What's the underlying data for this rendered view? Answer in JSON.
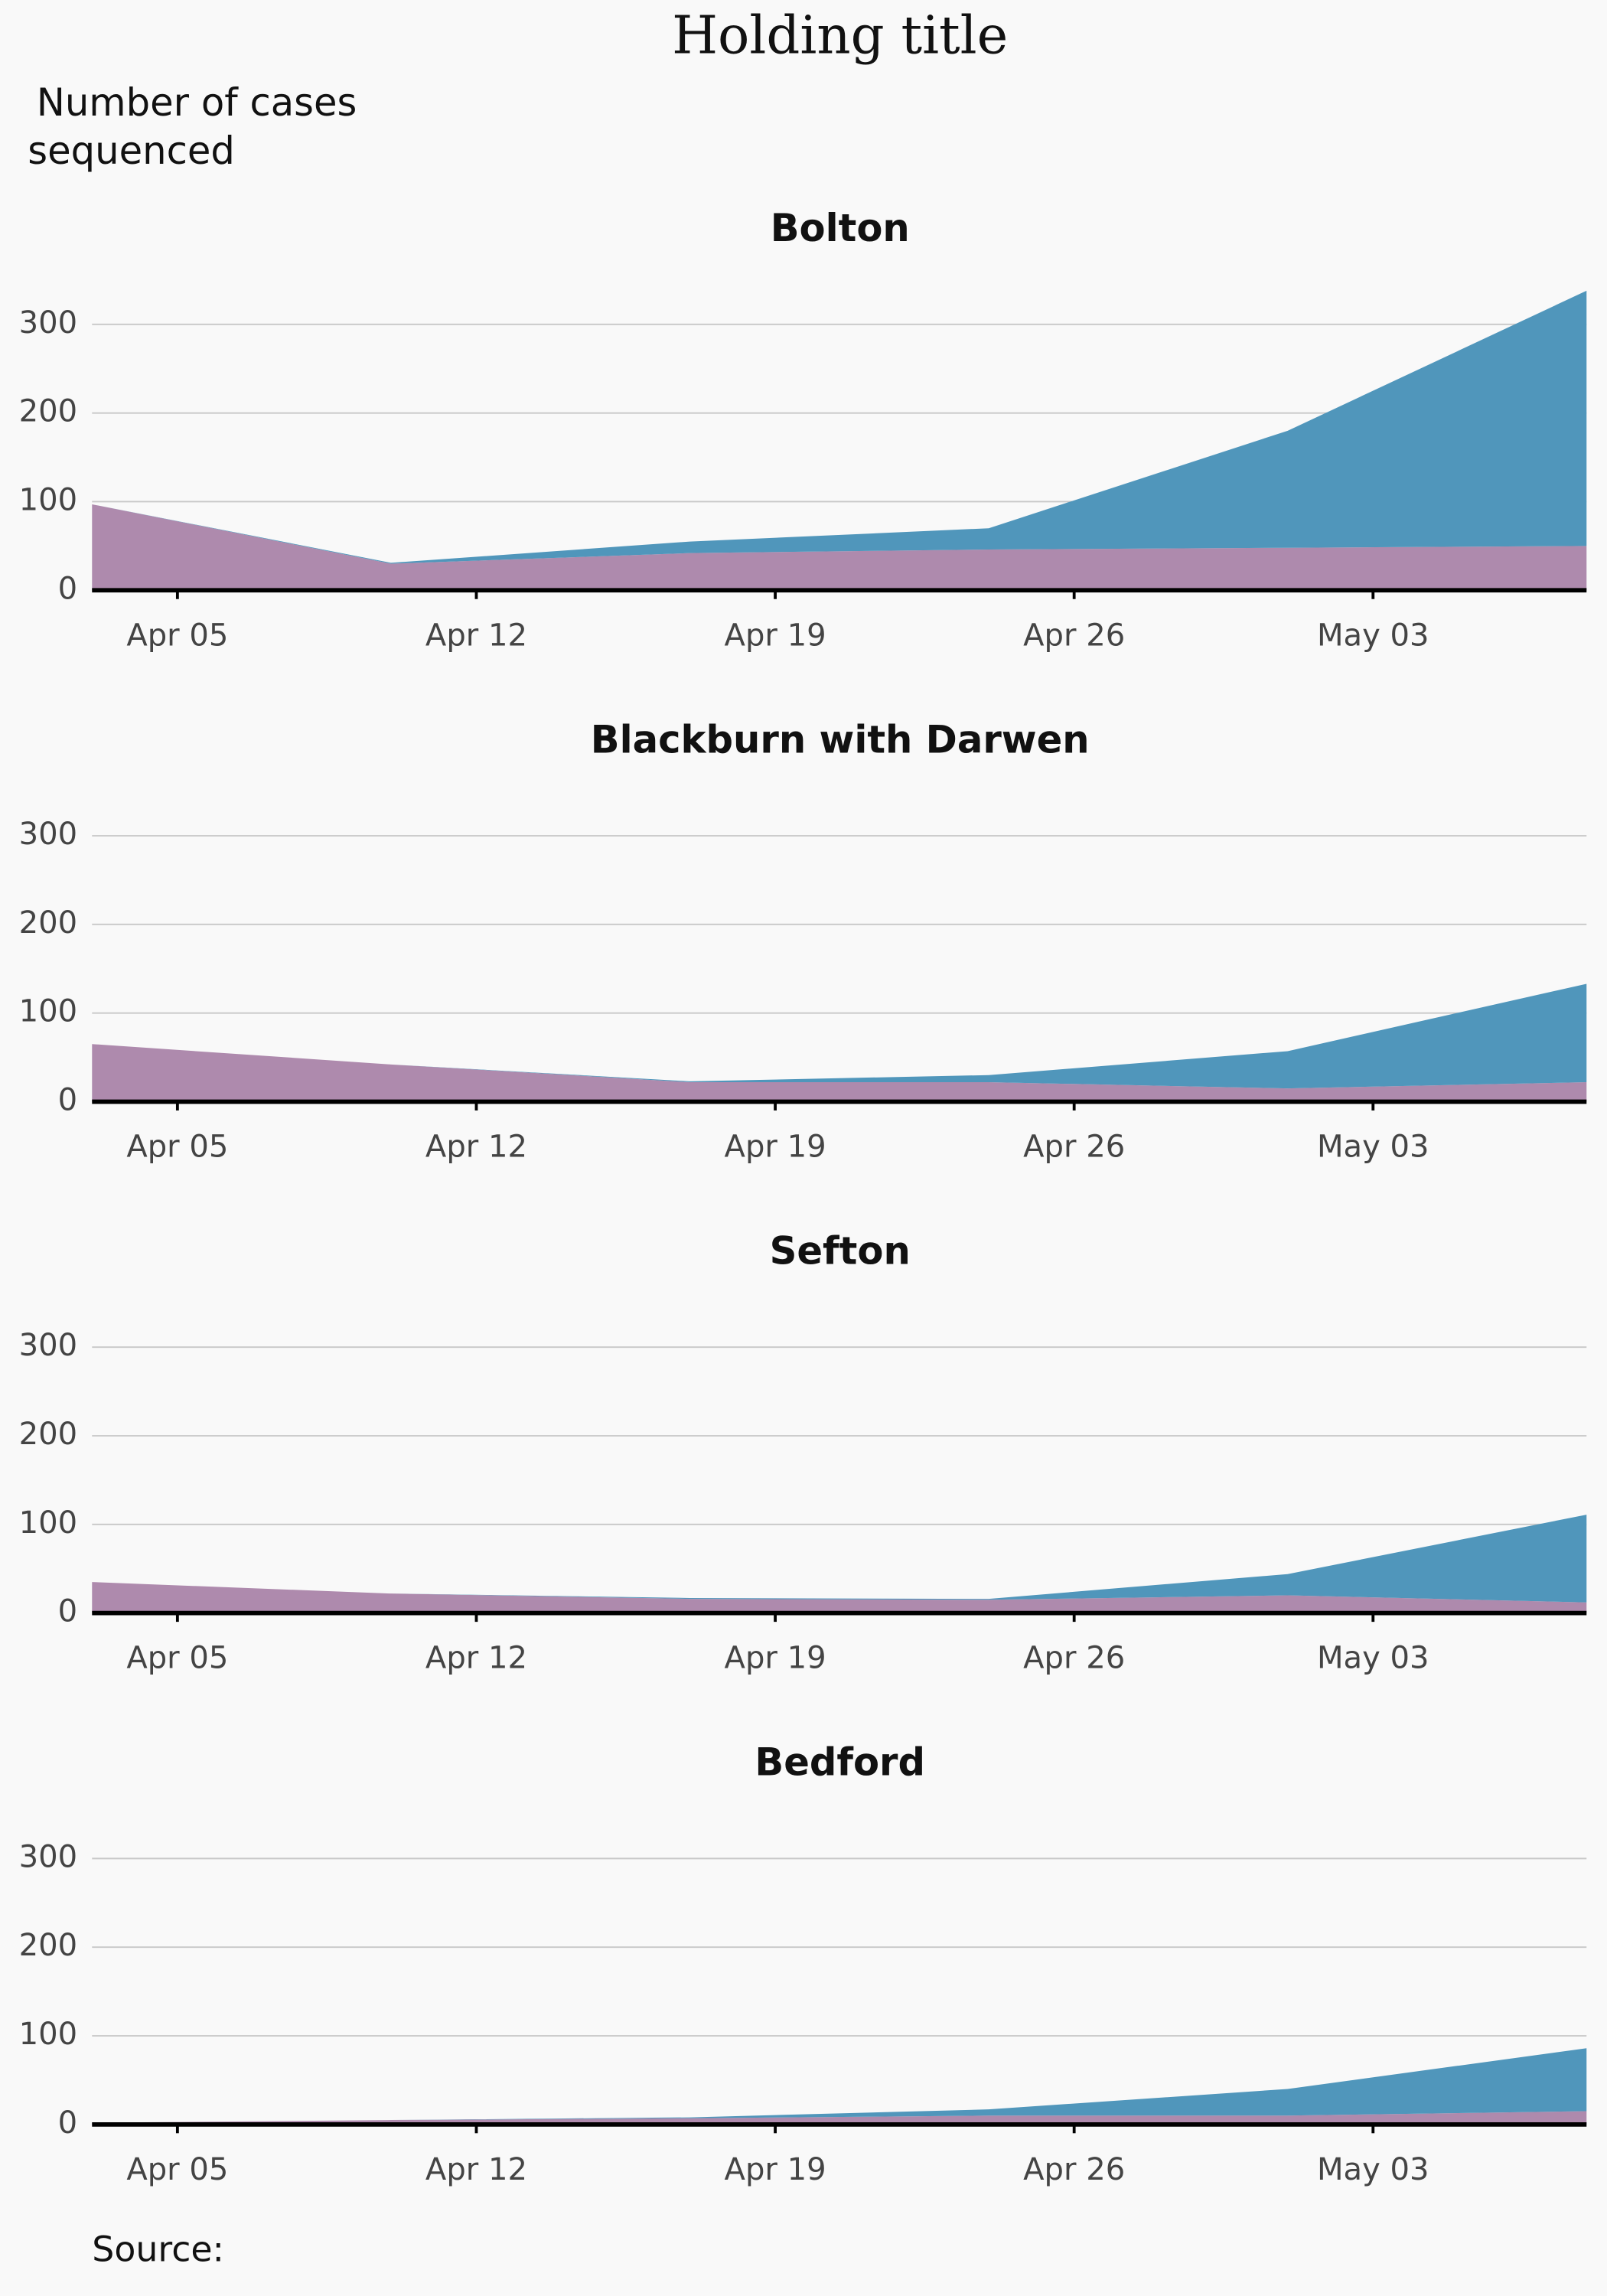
{
  "title": "Holding title",
  "y_label": [
    "Number of cases",
    "sequenced"
  ],
  "source": "Source:",
  "chart_data": [
    {
      "type": "area",
      "stacked": true,
      "title": "Bolton",
      "x": [
        "Apr 03",
        "Apr 10",
        "Apr 17",
        "Apr 24",
        "May 01",
        "May 08"
      ],
      "series": [
        {
          "color": "#ae8aad",
          "values": [
            97,
            30,
            42,
            46,
            48,
            50
          ]
        },
        {
          "color": "#5096bb",
          "values": [
            0,
            1,
            13,
            24,
            132,
            288
          ]
        }
      ],
      "xlim": [
        "Apr 03",
        "May 08"
      ],
      "xticks": [
        "Apr 05",
        "Apr 12",
        "Apr 19",
        "Apr 26",
        "May 03"
      ],
      "ylim": [
        0,
        340
      ],
      "yticks": [
        0,
        100,
        200,
        300
      ],
      "grid": true
    },
    {
      "type": "area",
      "stacked": true,
      "title": "Blackburn with Darwen",
      "x": [
        "Apr 03",
        "Apr 10",
        "Apr 17",
        "Apr 24",
        "May 01",
        "May 08"
      ],
      "series": [
        {
          "color": "#ae8aad",
          "values": [
            65,
            42,
            22,
            22,
            15,
            22
          ]
        },
        {
          "color": "#5096bb",
          "values": [
            0,
            0,
            1,
            8,
            42,
            111
          ]
        }
      ],
      "xlim": [
        "Apr 03",
        "May 08"
      ],
      "xticks": [
        "Apr 05",
        "Apr 12",
        "Apr 19",
        "Apr 26",
        "May 03"
      ],
      "ylim": [
        0,
        340
      ],
      "yticks": [
        0,
        100,
        200,
        300
      ],
      "grid": true
    },
    {
      "type": "area",
      "stacked": true,
      "title": "Sefton",
      "x": [
        "Apr 03",
        "Apr 10",
        "Apr 17",
        "Apr 24",
        "May 01",
        "May 08"
      ],
      "series": [
        {
          "color": "#ae8aad",
          "values": [
            35,
            22,
            16,
            15,
            20,
            12
          ]
        },
        {
          "color": "#5096bb",
          "values": [
            0,
            0,
            1,
            1,
            24,
            99
          ]
        }
      ],
      "xlim": [
        "Apr 03",
        "May 08"
      ],
      "xticks": [
        "Apr 05",
        "Apr 12",
        "Apr 19",
        "Apr 26",
        "May 03"
      ],
      "ylim": [
        0,
        340
      ],
      "yticks": [
        0,
        100,
        200,
        300
      ],
      "grid": true
    },
    {
      "type": "area",
      "stacked": true,
      "title": "Bedford",
      "x": [
        "Apr 03",
        "Apr 10",
        "Apr 17",
        "Apr 24",
        "May 01",
        "May 08"
      ],
      "series": [
        {
          "color": "#ae8aad",
          "values": [
            2,
            5,
            7,
            10,
            10,
            15
          ]
        },
        {
          "color": "#5096bb",
          "values": [
            0,
            0,
            1,
            7,
            30,
            71
          ]
        }
      ],
      "xlim": [
        "Apr 03",
        "May 08"
      ],
      "xticks": [
        "Apr 05",
        "Apr 12",
        "Apr 19",
        "Apr 26",
        "May 03"
      ],
      "ylim": [
        0,
        340
      ],
      "yticks": [
        0,
        100,
        200,
        300
      ],
      "grid": true
    }
  ]
}
